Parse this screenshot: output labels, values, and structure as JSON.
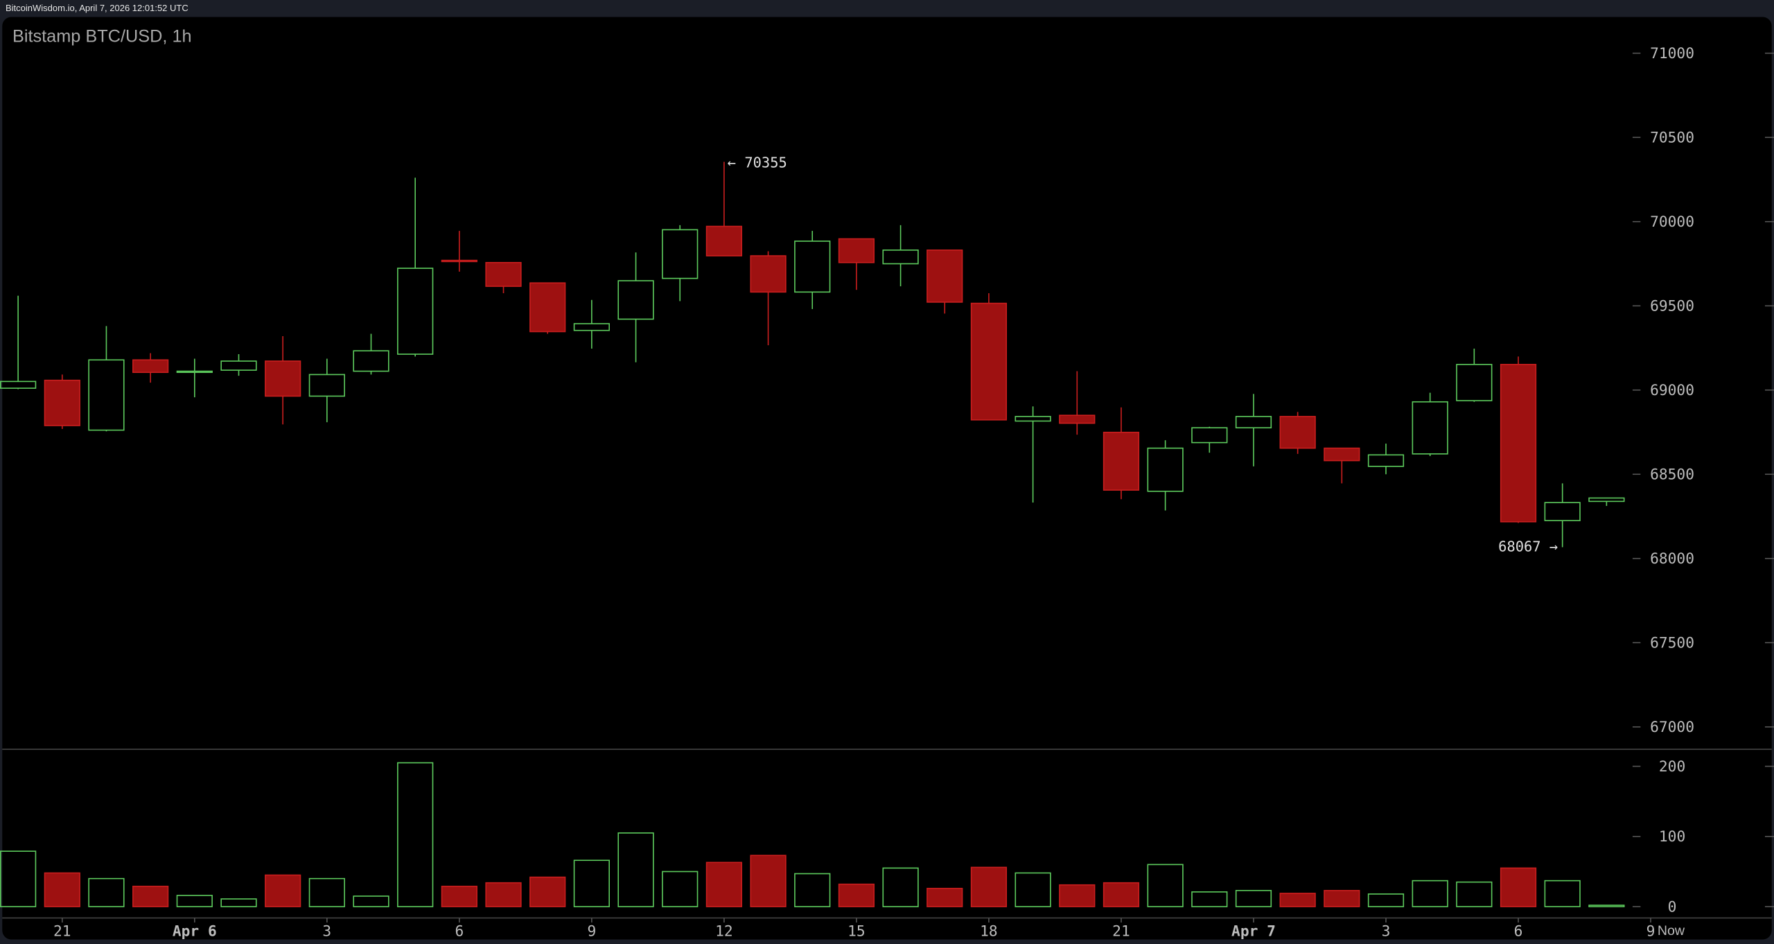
{
  "header": {
    "text": "BitcoinWisdom.io, April 7, 2026 12:01:52 UTC"
  },
  "colors": {
    "background": "#1b1e27",
    "panel": "#000000",
    "up": "#5cc95c",
    "down_fill": "#9e1111",
    "down_stroke": "#c81e1e",
    "text": "#bdbdbd",
    "grid": "#444444"
  },
  "chart_data": {
    "type": "candlestick",
    "title": "Bitstamp BTC/USD, 1h",
    "price_axis": {
      "ylim": [
        66800,
        71200
      ],
      "ticks": [
        71000,
        70500,
        70000,
        69500,
        69000,
        68500,
        68000,
        67500,
        67000
      ]
    },
    "volume_axis": {
      "ylim": [
        0,
        220
      ],
      "ticks": [
        200,
        100,
        0
      ]
    },
    "x_ticks": [
      {
        "label": "21",
        "at": "Apr 5 21:00",
        "bold": false
      },
      {
        "label": "Apr 6",
        "at": "Apr 6 00:00",
        "bold": true
      },
      {
        "label": "3",
        "at": "Apr 6 03:00",
        "bold": false
      },
      {
        "label": "6",
        "at": "Apr 6 06:00",
        "bold": false
      },
      {
        "label": "9",
        "at": "Apr 6 09:00",
        "bold": false
      },
      {
        "label": "12",
        "at": "Apr 6 12:00",
        "bold": false
      },
      {
        "label": "15",
        "at": "Apr 6 15:00",
        "bold": false
      },
      {
        "label": "18",
        "at": "Apr 6 18:00",
        "bold": false
      },
      {
        "label": "21",
        "at": "Apr 6 21:00",
        "bold": false
      },
      {
        "label": "Apr 7",
        "at": "Apr 7 00:00",
        "bold": true
      },
      {
        "label": "3",
        "at": "Apr 7 03:00",
        "bold": false
      },
      {
        "label": "6",
        "at": "Apr 7 06:00",
        "bold": false
      },
      {
        "label": "9",
        "at": "Apr 7 09:00",
        "bold": false
      }
    ],
    "now_label": "Now",
    "annotations": {
      "high": {
        "text": "← 70355",
        "value": 70355,
        "at": "Apr 6 12:00"
      },
      "low": {
        "text": "68067 →",
        "value": 68067,
        "at": "Apr 7 07:00"
      }
    },
    "candles": [
      {
        "t": "Apr 5 20:00",
        "o": 69011,
        "h": 69560,
        "l": 69005,
        "c": 69051,
        "v": 79
      },
      {
        "t": "Apr 5 21:00",
        "o": 69058,
        "h": 69092,
        "l": 68769,
        "c": 68789,
        "v": 48
      },
      {
        "t": "Apr 5 22:00",
        "o": 68762,
        "h": 69380,
        "l": 68755,
        "c": 69179,
        "v": 40
      },
      {
        "t": "Apr 5 23:00",
        "o": 69179,
        "h": 69219,
        "l": 69044,
        "c": 69105,
        "v": 29
      },
      {
        "t": "Apr 6 00:00",
        "o": 69105,
        "h": 69186,
        "l": 68957,
        "c": 69112,
        "v": 16
      },
      {
        "t": "Apr 6 01:00",
        "o": 69118,
        "h": 69213,
        "l": 69085,
        "c": 69172,
        "v": 11
      },
      {
        "t": "Apr 6 02:00",
        "o": 69172,
        "h": 69320,
        "l": 68796,
        "c": 68964,
        "v": 45
      },
      {
        "t": "Apr 6 03:00",
        "o": 68964,
        "h": 69186,
        "l": 68809,
        "c": 69092,
        "v": 40
      },
      {
        "t": "Apr 6 04:00",
        "o": 69112,
        "h": 69334,
        "l": 69092,
        "c": 69233,
        "v": 15
      },
      {
        "t": "Apr 6 05:00",
        "o": 69213,
        "h": 70261,
        "l": 69199,
        "c": 69723,
        "v": 205
      },
      {
        "t": "Apr 6 06:00",
        "o": 69770,
        "h": 69945,
        "l": 69703,
        "c": 69763,
        "v": 29
      },
      {
        "t": "Apr 6 07:00",
        "o": 69757,
        "h": 69757,
        "l": 69575,
        "c": 69616,
        "v": 34
      },
      {
        "t": "Apr 6 08:00",
        "o": 69636,
        "h": 69636,
        "l": 69334,
        "c": 69347,
        "v": 42
      },
      {
        "t": "Apr 6 09:00",
        "o": 69354,
        "h": 69535,
        "l": 69246,
        "c": 69394,
        "v": 66
      },
      {
        "t": "Apr 6 10:00",
        "o": 69421,
        "h": 69817,
        "l": 69165,
        "c": 69649,
        "v": 105
      },
      {
        "t": "Apr 6 11:00",
        "o": 69663,
        "h": 69979,
        "l": 69528,
        "c": 69952,
        "v": 50
      },
      {
        "t": "Apr 6 12:00",
        "o": 69972,
        "h": 70355,
        "l": 69797,
        "c": 69797,
        "v": 63
      },
      {
        "t": "Apr 6 13:00",
        "o": 69797,
        "h": 69824,
        "l": 69266,
        "c": 69582,
        "v": 73
      },
      {
        "t": "Apr 6 14:00",
        "o": 69582,
        "h": 69945,
        "l": 69481,
        "c": 69884,
        "v": 47
      },
      {
        "t": "Apr 6 15:00",
        "o": 69898,
        "h": 69898,
        "l": 69595,
        "c": 69757,
        "v": 32
      },
      {
        "t": "Apr 6 16:00",
        "o": 69750,
        "h": 69979,
        "l": 69616,
        "c": 69831,
        "v": 55
      },
      {
        "t": "Apr 6 17:00",
        "o": 69831,
        "h": 69831,
        "l": 69454,
        "c": 69522,
        "v": 26
      },
      {
        "t": "Apr 6 18:00",
        "o": 69515,
        "h": 69575,
        "l": 68823,
        "c": 68823,
        "v": 56
      },
      {
        "t": "Apr 6 19:00",
        "o": 68816,
        "h": 68903,
        "l": 68332,
        "c": 68843,
        "v": 48
      },
      {
        "t": "Apr 6 20:00",
        "o": 68850,
        "h": 69112,
        "l": 68735,
        "c": 68803,
        "v": 31
      },
      {
        "t": "Apr 6 21:00",
        "o": 68749,
        "h": 68897,
        "l": 68352,
        "c": 68406,
        "v": 34
      },
      {
        "t": "Apr 6 22:00",
        "o": 68399,
        "h": 68702,
        "l": 68285,
        "c": 68655,
        "v": 60
      },
      {
        "t": "Apr 6 23:00",
        "o": 68688,
        "h": 68782,
        "l": 68628,
        "c": 68776,
        "v": 21
      },
      {
        "t": "Apr 7 00:00",
        "o": 68776,
        "h": 68977,
        "l": 68547,
        "c": 68843,
        "v": 23
      },
      {
        "t": "Apr 7 01:00",
        "o": 68843,
        "h": 68870,
        "l": 68621,
        "c": 68655,
        "v": 19
      },
      {
        "t": "Apr 7 02:00",
        "o": 68655,
        "h": 68655,
        "l": 68446,
        "c": 68581,
        "v": 23
      },
      {
        "t": "Apr 7 03:00",
        "o": 68547,
        "h": 68682,
        "l": 68500,
        "c": 68615,
        "v": 18
      },
      {
        "t": "Apr 7 04:00",
        "o": 68621,
        "h": 68984,
        "l": 68608,
        "c": 68930,
        "v": 37
      },
      {
        "t": "Apr 7 05:00",
        "o": 68937,
        "h": 69246,
        "l": 68930,
        "c": 69152,
        "v": 35
      },
      {
        "t": "Apr 7 06:00",
        "o": 69152,
        "h": 69199,
        "l": 68211,
        "c": 68218,
        "v": 55
      },
      {
        "t": "Apr 7 07:00",
        "o": 68225,
        "h": 68446,
        "l": 68067,
        "c": 68332,
        "v": 37
      },
      {
        "t": "Apr 7 08:00",
        "o": 68339,
        "h": 68359,
        "l": 68312,
        "c": 68359,
        "v": 2
      }
    ]
  }
}
